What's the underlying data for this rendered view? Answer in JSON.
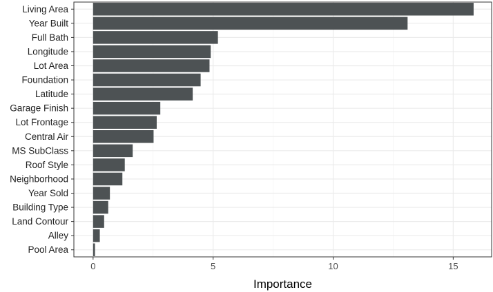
{
  "chart_data": {
    "type": "bar",
    "orientation": "horizontal",
    "categories": [
      "Living Area",
      "Year Built",
      "Full Bath",
      "Longitude",
      "Lot Area",
      "Foundation",
      "Latitude",
      "Garage Finish",
      "Lot Frontage",
      "Central Air",
      "MS SubClass",
      "Roof Style",
      "Neighborhood",
      "Year Sold",
      "Building Type",
      "Land Contour",
      "Alley",
      "Pool Area"
    ],
    "values": [
      15.85,
      13.1,
      5.2,
      4.9,
      4.85,
      4.48,
      4.15,
      2.8,
      2.65,
      2.52,
      1.65,
      1.32,
      1.22,
      0.7,
      0.63,
      0.46,
      0.28,
      0.08
    ],
    "xlabel": "Importance",
    "ylabel": "",
    "xlim": [
      -0.8,
      16.6
    ],
    "xticks": [
      0,
      5,
      10,
      15
    ],
    "grid": true,
    "colors": {
      "bar": "#4d5254",
      "panel": "#ffffff",
      "grid_major": "#ebebeb",
      "grid_minor": "#f5f5f5",
      "border": "#333333"
    }
  }
}
